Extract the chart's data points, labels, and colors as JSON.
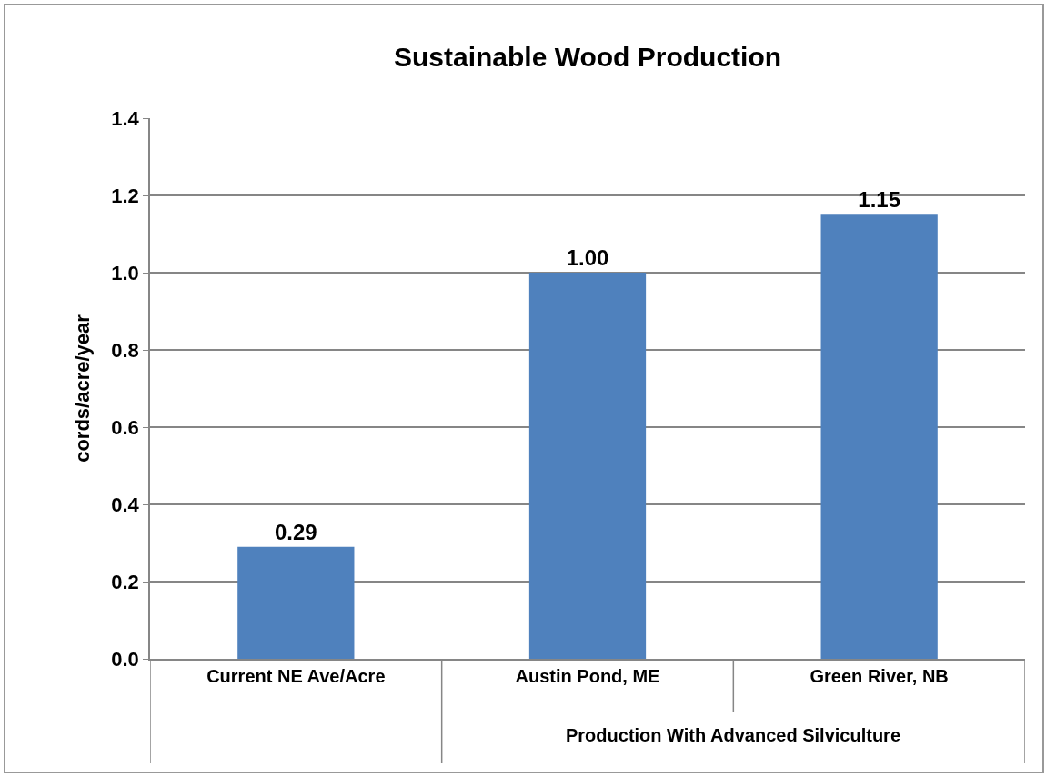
{
  "chart_data": {
    "type": "bar",
    "title": "Sustainable Wood Production",
    "ylabel": "cords/acre/year",
    "categories": [
      "Current NE Ave/Acre",
      "Austin Pond, ME",
      "Green River, NB"
    ],
    "values": [
      0.29,
      1.0,
      1.15
    ],
    "color": "#4f81bd",
    "value_labels": [
      "0.29",
      "1.00",
      "1.15"
    ],
    "annotations": [
      "Production With Advanced Silviculture"
    ],
    "ylim": [
      0,
      1.4
    ],
    "yticks": [
      {
        "value": 0,
        "label": "0.0"
      },
      {
        "value": 0.2,
        "label": "0.2"
      },
      {
        "value": 0.4,
        "label": "0.4"
      },
      {
        "value": 0.6,
        "label": "0.6"
      },
      {
        "value": 0.8,
        "label": "0.8"
      },
      {
        "value": 1.0,
        "label": "1.0"
      },
      {
        "value": 1.2,
        "label": "1.2"
      },
      {
        "value": 1.4,
        "label": "1.4"
      }
    ],
    "grid": "y",
    "legend": false
  }
}
